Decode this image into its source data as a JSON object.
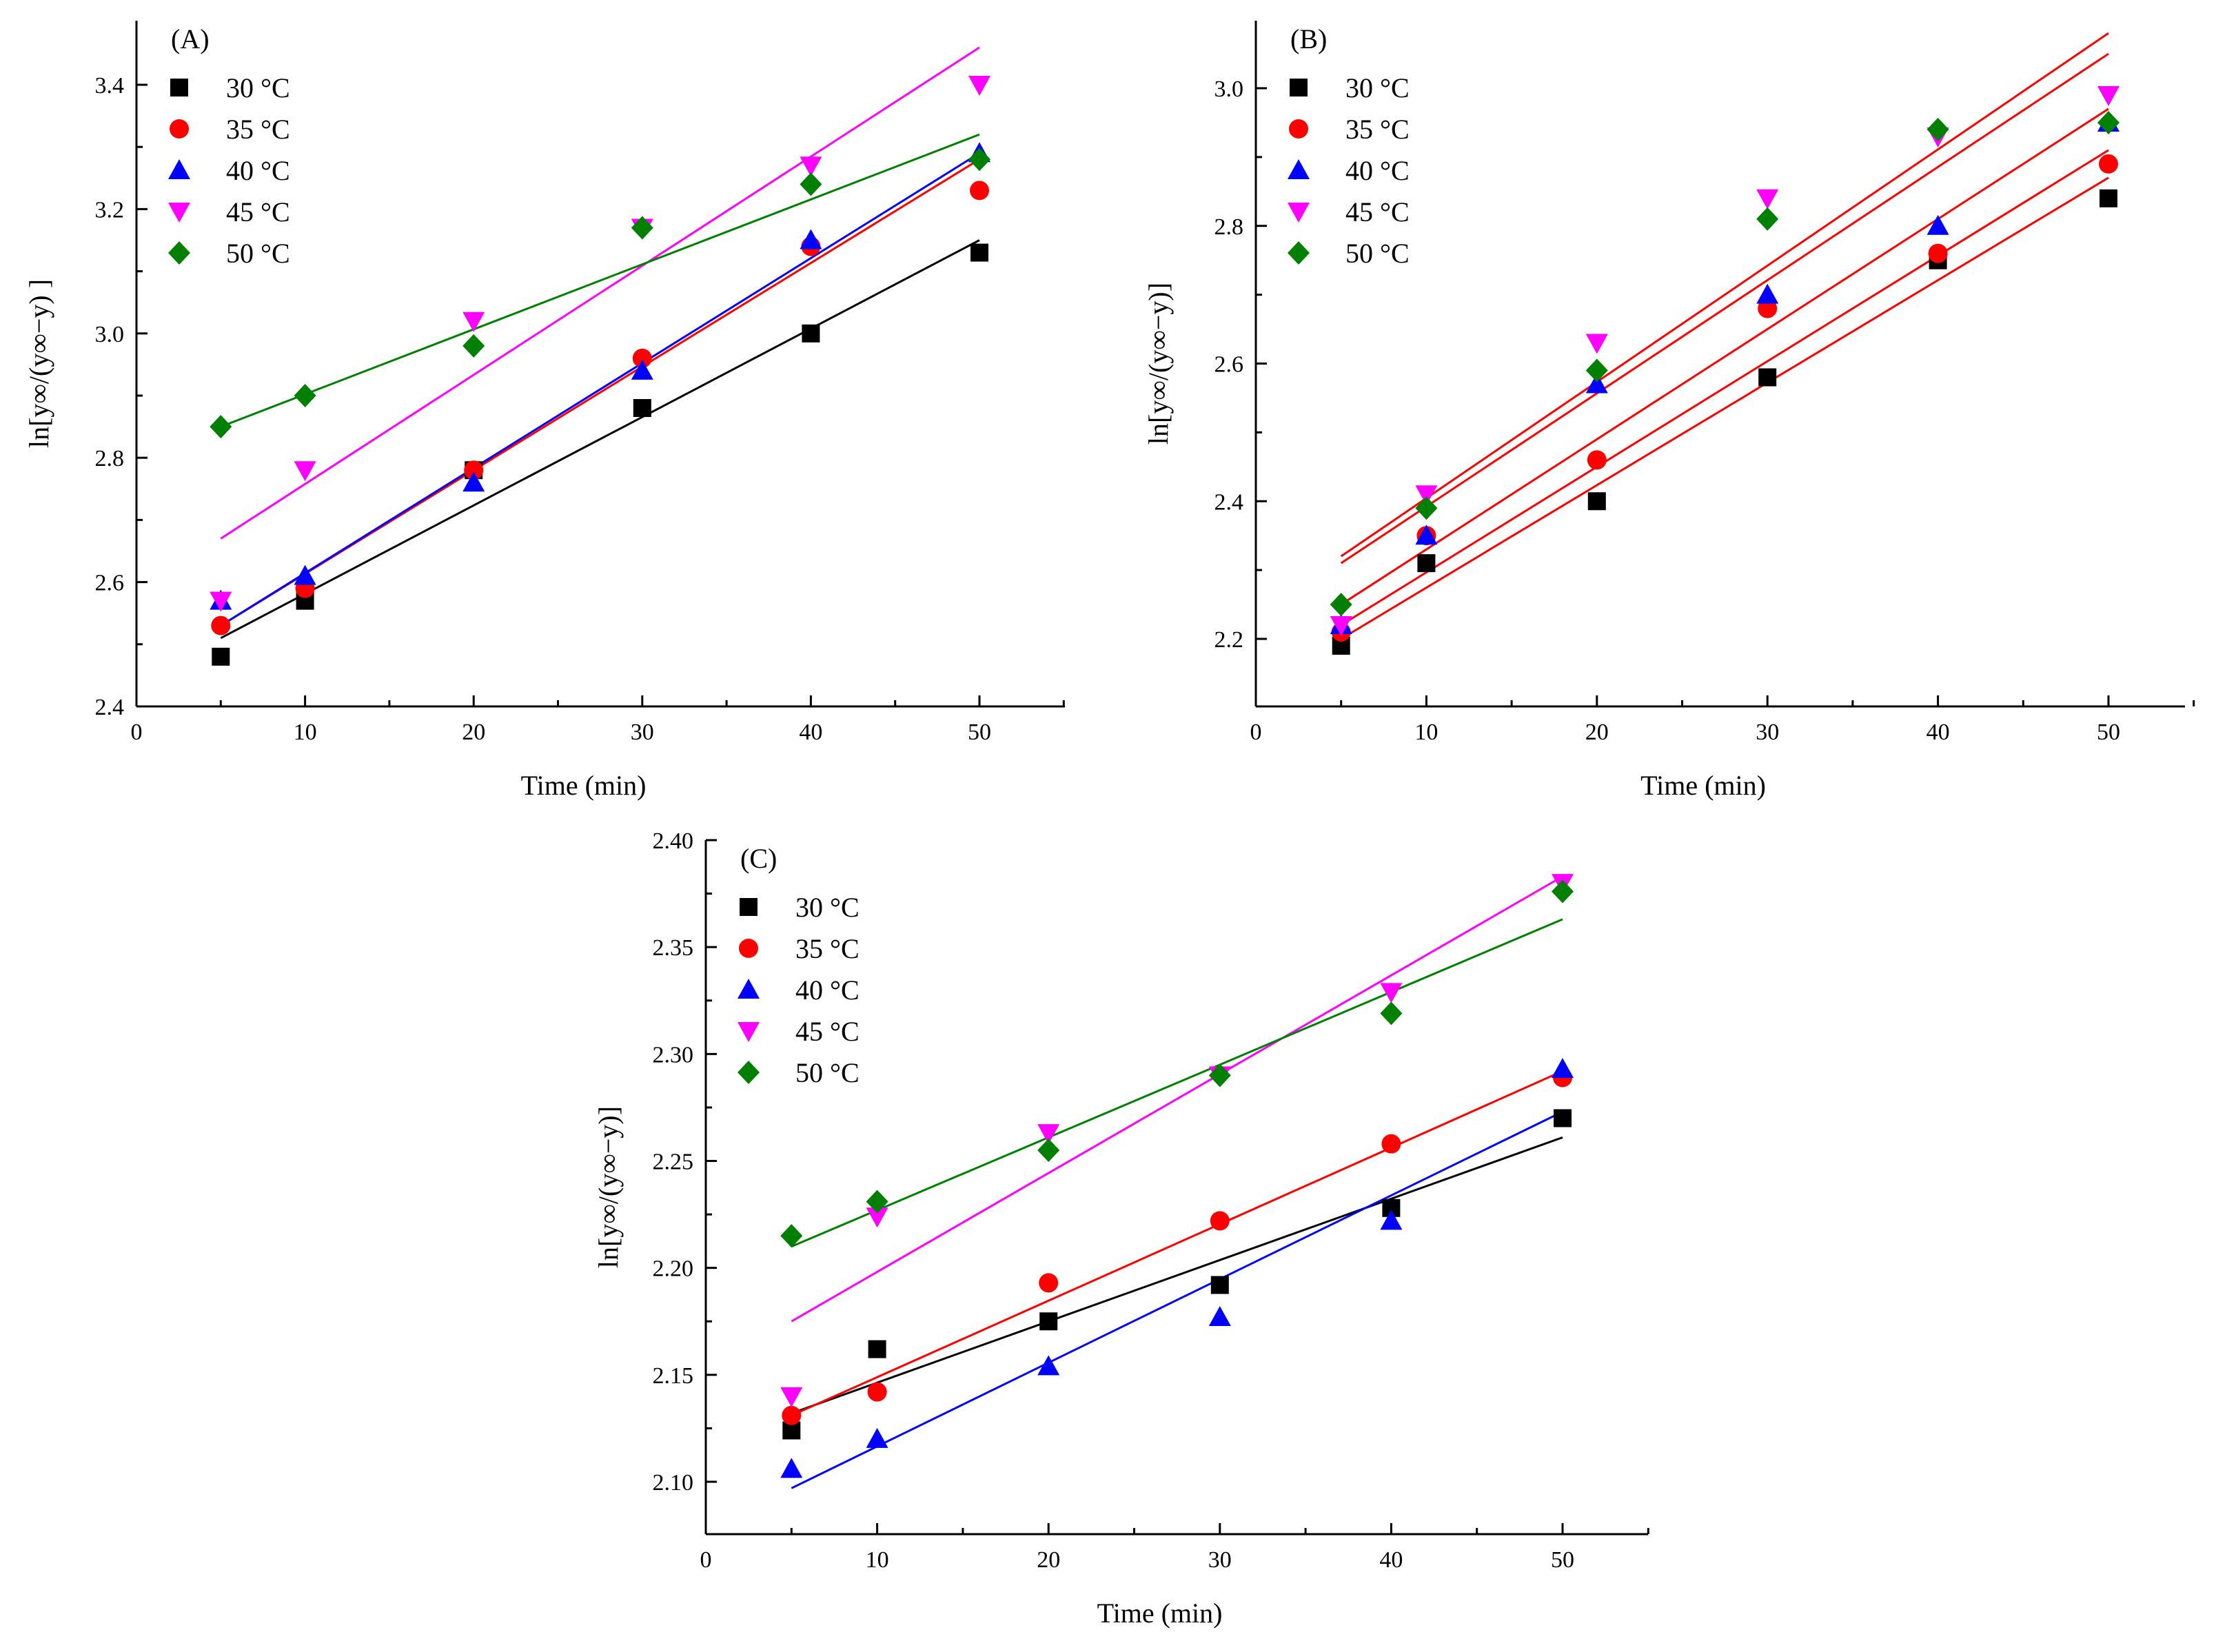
{
  "figure": {
    "panels": [
      "A",
      "B",
      "C"
    ]
  },
  "chart_data": [
    {
      "panel": "(A)",
      "type": "scatter",
      "xlabel": "Time (min)",
      "ylabel": "ln[y∞/(y∞−y) ]",
      "xlim": [
        0,
        55
      ],
      "ylim": [
        2.4,
        3.5
      ],
      "xticks": [
        0,
        10,
        20,
        30,
        40,
        50
      ],
      "yticks": [
        2.4,
        2.6,
        2.8,
        3.0,
        3.2,
        3.4
      ],
      "ytick_labels": [
        "2.4",
        "2.6",
        "2.8",
        "3.0",
        "3.2",
        "3.4"
      ],
      "legend_position": "top-left",
      "x": [
        5,
        10,
        20,
        30,
        40,
        50
      ],
      "series": [
        {
          "name": "30 °C",
          "marker": "square",
          "color": "#000000",
          "line_color": "#000000",
          "values": [
            2.48,
            2.57,
            2.78,
            2.88,
            3.0,
            3.13
          ],
          "fit": [
            [
              5,
              2.51
            ],
            [
              50,
              3.15
            ]
          ]
        },
        {
          "name": "35 °C",
          "marker": "circle",
          "color": "#ff0000",
          "line_color": "#ff0000",
          "values": [
            2.53,
            2.59,
            2.78,
            2.96,
            3.14,
            3.23
          ],
          "fit": [
            [
              5,
              2.53
            ],
            [
              50,
              3.28
            ]
          ]
        },
        {
          "name": "40 °C",
          "marker": "triangle-up",
          "color": "#0000ff",
          "line_color": "#0000ff",
          "values": [
            2.57,
            2.61,
            2.76,
            2.94,
            3.15,
            3.29
          ],
          "fit": [
            [
              5,
              2.53
            ],
            [
              50,
              3.29
            ]
          ]
        },
        {
          "name": "45 °C",
          "marker": "triangle-down",
          "color": "#ff00ff",
          "line_color": "#ff00ff",
          "values": [
            2.57,
            2.78,
            3.02,
            3.17,
            3.27,
            3.4
          ],
          "fit": [
            [
              5,
              2.67
            ],
            [
              50,
              3.46
            ]
          ]
        },
        {
          "name": "50 °C",
          "marker": "diamond",
          "color": "#008000",
          "line_color": "#008000",
          "values": [
            2.85,
            2.9,
            2.98,
            3.17,
            3.24,
            3.28
          ],
          "fit": [
            [
              5,
              2.85
            ],
            [
              50,
              3.32
            ]
          ]
        }
      ]
    },
    {
      "panel": "(B)",
      "type": "scatter",
      "xlabel": "Time (min)",
      "ylabel": "ln[y∞/(y∞−y)]",
      "xlim": [
        0,
        55
      ],
      "ylim": [
        2.1,
        3.1
      ],
      "xticks": [
        0,
        10,
        20,
        30,
        40,
        50
      ],
      "yticks": [
        2.2,
        2.4,
        2.6,
        2.8,
        3.0
      ],
      "ytick_labels": [
        "2.2",
        "2.4",
        "2.6",
        "2.8",
        "3.0"
      ],
      "legend_position": "top-left",
      "x": [
        5,
        10,
        20,
        30,
        40,
        50
      ],
      "series": [
        {
          "name": "30 °C",
          "marker": "square",
          "color": "#000000",
          "line_color": "#ff0000",
          "values": [
            2.19,
            2.31,
            2.4,
            2.58,
            2.75,
            2.84
          ],
          "fit": [
            [
              5,
              2.2
            ],
            [
              50,
              2.87
            ]
          ]
        },
        {
          "name": "35 °C",
          "marker": "circle",
          "color": "#ff0000",
          "line_color": "#ff0000",
          "values": [
            2.21,
            2.35,
            2.46,
            2.68,
            2.76,
            2.89
          ],
          "fit": [
            [
              5,
              2.22
            ],
            [
              50,
              2.91
            ]
          ]
        },
        {
          "name": "40 °C",
          "marker": "triangle-up",
          "color": "#0000ff",
          "line_color": "#ff0000",
          "values": [
            2.22,
            2.35,
            2.57,
            2.7,
            2.8,
            2.95
          ],
          "fit": [
            [
              5,
              2.25
            ],
            [
              50,
              2.97
            ]
          ]
        },
        {
          "name": "45 °C",
          "marker": "triangle-down",
          "color": "#ff00ff",
          "line_color": "#ff0000",
          "values": [
            2.22,
            2.41,
            2.63,
            2.84,
            2.93,
            2.99
          ],
          "fit": [
            [
              5,
              2.31
            ],
            [
              50,
              3.05
            ]
          ]
        },
        {
          "name": "50 °C",
          "marker": "diamond",
          "color": "#008000",
          "line_color": "#ff0000",
          "values": [
            2.25,
            2.39,
            2.59,
            2.81,
            2.94,
            2.95
          ],
          "fit": [
            [
              5,
              2.32
            ],
            [
              50,
              3.08
            ]
          ]
        }
      ]
    },
    {
      "panel": "(C)",
      "type": "scatter",
      "xlabel": "Time (min)",
      "ylabel": "ln[y∞/(y∞−y)]",
      "xlim": [
        0,
        55
      ],
      "ylim": [
        2.075,
        2.4
      ],
      "xticks": [
        0,
        10,
        20,
        30,
        40,
        50
      ],
      "yticks": [
        2.1,
        2.15,
        2.2,
        2.25,
        2.3,
        2.35,
        2.4
      ],
      "ytick_labels": [
        "2.10",
        "2.15",
        "2.20",
        "2.25",
        "2.30",
        "2.35",
        "2.40"
      ],
      "legend_position": "top-left",
      "x": [
        5,
        10,
        20,
        30,
        40,
        50
      ],
      "series": [
        {
          "name": "30 °C",
          "marker": "square",
          "color": "#000000",
          "line_color": "#000000",
          "values": [
            2.124,
            2.162,
            2.175,
            2.192,
            2.228,
            2.27
          ],
          "fit": [
            [
              5,
              2.132
            ],
            [
              50,
              2.261
            ]
          ]
        },
        {
          "name": "35 °C",
          "marker": "circle",
          "color": "#ff0000",
          "line_color": "#ff0000",
          "values": [
            2.131,
            2.142,
            2.193,
            2.222,
            2.258,
            2.289
          ],
          "fit": [
            [
              5,
              2.131
            ],
            [
              50,
              2.292
            ]
          ]
        },
        {
          "name": "40 °C",
          "marker": "triangle-up",
          "color": "#0000ff",
          "line_color": "#0000ff",
          "values": [
            2.106,
            2.12,
            2.154,
            2.177,
            2.222,
            2.293
          ],
          "fit": [
            [
              5,
              2.097
            ],
            [
              50,
              2.273
            ]
          ]
        },
        {
          "name": "45 °C",
          "marker": "triangle-down",
          "color": "#ff00ff",
          "line_color": "#ff00ff",
          "values": [
            2.14,
            2.224,
            2.263,
            2.29,
            2.329,
            2.38
          ],
          "fit": [
            [
              5,
              2.175
            ],
            [
              50,
              2.383
            ]
          ]
        },
        {
          "name": "50 °C",
          "marker": "diamond",
          "color": "#008000",
          "line_color": "#008000",
          "values": [
            2.215,
            2.231,
            2.255,
            2.29,
            2.319,
            2.376
          ],
          "fit": [
            [
              5,
              2.21
            ],
            [
              50,
              2.363
            ]
          ]
        }
      ]
    }
  ]
}
